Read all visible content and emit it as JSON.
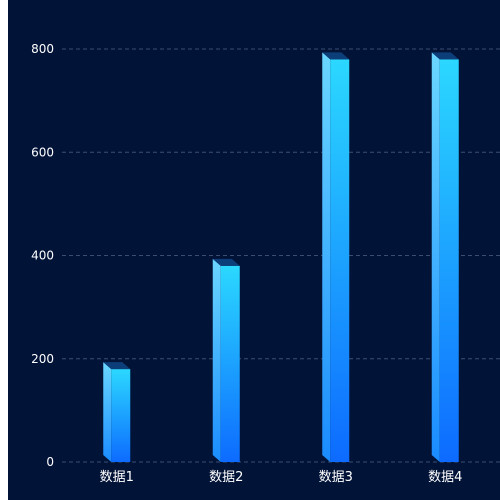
{
  "colors": {
    "background": "#021338",
    "bar_top": "#2bd8ff",
    "bar_bottom": "#0d6bff",
    "bar_side_top": "#6ad6ff",
    "bar_side_bottom": "#1a8cff",
    "bar_cap": "#0c3f7a",
    "grid": "#3a4f70",
    "text": "#ffffff"
  },
  "chart_data": {
    "type": "bar",
    "style": "3d-pseudo",
    "categories": [
      "数据1",
      "数据2",
      "数据3",
      "数据4"
    ],
    "values": [
      180,
      380,
      780,
      780
    ],
    "ylim": [
      0,
      800
    ],
    "yticks": [
      0,
      200,
      400,
      600,
      800
    ],
    "grid": true,
    "legend": "none",
    "title": "",
    "xlabel": "",
    "ylabel": ""
  }
}
